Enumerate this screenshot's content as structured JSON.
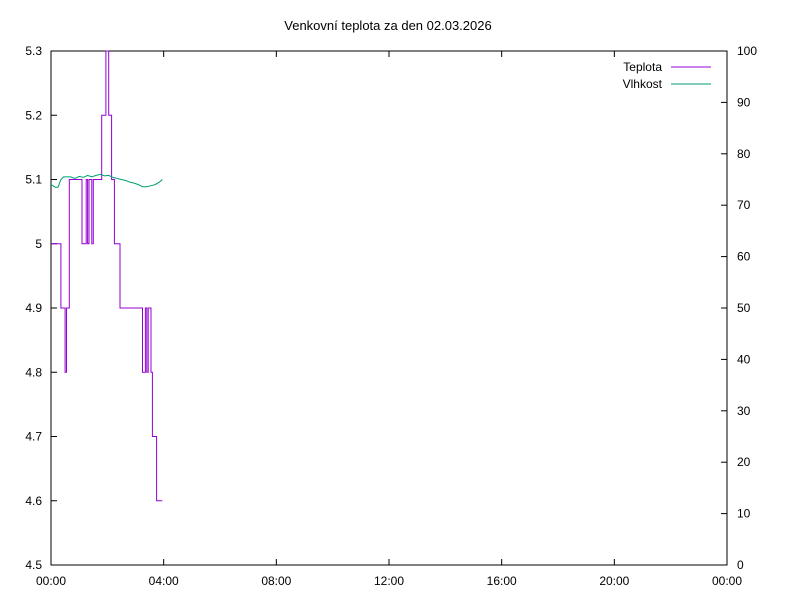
{
  "chart_data": {
    "type": "line",
    "title": "Venkovní teplota za den 02.03.2026",
    "xlabel": "",
    "ylabel": "",
    "x_ticks": [
      "00:00",
      "04:00",
      "08:00",
      "12:00",
      "16:00",
      "20:00",
      "00:00"
    ],
    "xlim_hours": [
      0,
      24
    ],
    "ylim_left": [
      4.5,
      5.3
    ],
    "y_ticks_left": [
      "4.5",
      "4.6",
      "4.7",
      "4.8",
      "4.9",
      "5",
      "5.1",
      "5.2",
      "5.3"
    ],
    "ylim_right": [
      0,
      100
    ],
    "y_ticks_right": [
      "0",
      "10",
      "20",
      "30",
      "40",
      "50",
      "60",
      "70",
      "80",
      "90",
      "100"
    ],
    "grid": false,
    "legend_position": "top-right",
    "series": [
      {
        "name": "Teplota",
        "axis": "left",
        "color": "#9400d3",
        "x_hours": [
          0.0,
          0.35,
          0.35,
          0.5,
          0.5,
          0.55,
          0.55,
          0.65,
          0.65,
          0.9,
          0.9,
          1.1,
          1.1,
          1.25,
          1.25,
          1.3,
          1.3,
          1.35,
          1.35,
          1.45,
          1.45,
          1.5,
          1.5,
          1.8,
          1.8,
          1.95,
          1.95,
          2.05,
          2.05,
          2.15,
          2.15,
          2.25,
          2.25,
          2.35,
          2.35,
          2.45,
          2.45,
          2.75,
          2.75,
          3.25,
          3.25,
          3.35,
          3.35,
          3.4,
          3.4,
          3.45,
          3.45,
          3.55,
          3.55,
          3.6,
          3.6,
          3.65,
          3.65,
          3.75,
          3.75,
          3.95
        ],
        "values": [
          5.0,
          5.0,
          4.9,
          4.9,
          4.8,
          4.8,
          4.9,
          4.9,
          5.1,
          5.1,
          5.1,
          5.1,
          5.0,
          5.0,
          5.1,
          5.1,
          5.0,
          5.0,
          5.1,
          5.1,
          5.0,
          5.0,
          5.1,
          5.1,
          5.2,
          5.2,
          5.3,
          5.3,
          5.2,
          5.2,
          5.1,
          5.1,
          5.0,
          5.0,
          5.0,
          5.0,
          4.9,
          4.9,
          4.9,
          4.9,
          4.8,
          4.8,
          4.9,
          4.9,
          4.8,
          4.8,
          4.9,
          4.9,
          4.8,
          4.8,
          4.7,
          4.7,
          4.7,
          4.7,
          4.6,
          4.6
        ]
      },
      {
        "name": "Vlhkost",
        "axis": "right",
        "color": "#009e73",
        "x_hours": [
          0.0,
          0.15,
          0.25,
          0.35,
          0.45,
          0.55,
          0.7,
          0.85,
          1.0,
          1.15,
          1.3,
          1.45,
          1.6,
          1.75,
          1.9,
          2.05,
          2.2,
          2.35,
          2.5,
          2.65,
          2.8,
          2.95,
          3.1,
          3.25,
          3.4,
          3.55,
          3.7,
          3.85,
          3.95
        ],
        "values": [
          74,
          73.5,
          73.5,
          75,
          75.5,
          75.5,
          75.5,
          75.2,
          75.6,
          75.4,
          75.8,
          75.5,
          75.8,
          76,
          75.7,
          75.8,
          75.4,
          75.2,
          75,
          74.8,
          74.5,
          74.3,
          74,
          73.6,
          73.6,
          73.8,
          74,
          74.5,
          75
        ]
      }
    ]
  }
}
